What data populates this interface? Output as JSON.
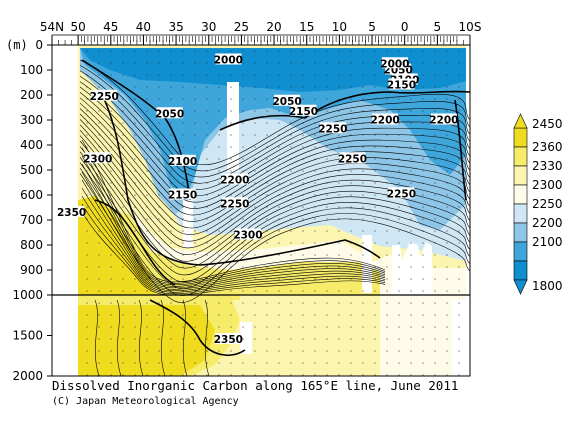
{
  "figure": {
    "caption": "Dissolved Inorganic Carbon along 165°E line, June 2011",
    "credit": "(C) Japan Meteorological Agency",
    "depth_unit": "(m)"
  },
  "latitude_axis": {
    "ticks": [
      {
        "lat": 54,
        "label": "54N"
      },
      {
        "lat": 50,
        "label": "50"
      },
      {
        "lat": 45,
        "label": "45"
      },
      {
        "lat": 40,
        "label": "40"
      },
      {
        "lat": 35,
        "label": "35"
      },
      {
        "lat": 30,
        "label": "30"
      },
      {
        "lat": 25,
        "label": "25"
      },
      {
        "lat": 20,
        "label": "20"
      },
      {
        "lat": 15,
        "label": "15"
      },
      {
        "lat": 10,
        "label": "10"
      },
      {
        "lat": 5,
        "label": "5"
      },
      {
        "lat": 0,
        "label": "0"
      },
      {
        "lat": -5,
        "label": "5"
      },
      {
        "lat": -10,
        "label": "10S"
      }
    ],
    "range": [
      54,
      -10
    ]
  },
  "depth_axis_upper": {
    "ticks": [
      "0",
      "100",
      "200",
      "300",
      "400",
      "500",
      "600",
      "700",
      "800",
      "900",
      "1000"
    ],
    "range": [
      0,
      1000
    ]
  },
  "depth_axis_lower": {
    "ticks": [
      "1500",
      "2000"
    ],
    "range": [
      1000,
      2000
    ]
  },
  "colorbar": {
    "labels": [
      "2450",
      "2360",
      "2330",
      "2300",
      "2250",
      "2200",
      "2100",
      "1800"
    ],
    "colors": [
      "#f0dc1e",
      "#f7ec6a",
      "#fbf5b0",
      "#fefce8",
      "#cfe6f4",
      "#8ec6e8",
      "#3fa6db",
      "#0f8fd0"
    ]
  },
  "contour_labels": [
    {
      "text": "2000",
      "lat": 27,
      "depth": 60
    },
    {
      "text": "2050",
      "lat": 1,
      "depth": 100
    },
    {
      "text": "2000",
      "lat": 1.5,
      "depth": 75
    },
    {
      "text": "2100",
      "lat": 0,
      "depth": 140
    },
    {
      "text": "2150",
      "lat": 0.5,
      "depth": 160
    },
    {
      "text": "2250",
      "lat": 46,
      "depth": 205
    },
    {
      "text": "2050",
      "lat": 36,
      "depth": 275
    },
    {
      "text": "2050",
      "lat": 18,
      "depth": 225
    },
    {
      "text": "2150",
      "lat": 15.5,
      "depth": 265
    },
    {
      "text": "2200",
      "lat": 3,
      "depth": 300
    },
    {
      "text": "2200",
      "lat": -6,
      "depth": 300
    },
    {
      "text": "2250",
      "lat": 11,
      "depth": 335
    },
    {
      "text": "2300",
      "lat": 47,
      "depth": 455
    },
    {
      "text": "2100",
      "lat": 34,
      "depth": 465
    },
    {
      "text": "2250",
      "lat": 8,
      "depth": 455
    },
    {
      "text": "2200",
      "lat": 26,
      "depth": 540
    },
    {
      "text": "2150",
      "lat": 34,
      "depth": 600
    },
    {
      "text": "2250",
      "lat": 0.5,
      "depth": 595
    },
    {
      "text": "2250",
      "lat": 26,
      "depth": 635
    },
    {
      "text": "2350",
      "lat": 51,
      "depth": 670
    },
    {
      "text": "2300",
      "lat": 24,
      "depth": 760
    },
    {
      "text": "2350",
      "lat": 27,
      "depth": 1550
    }
  ]
}
